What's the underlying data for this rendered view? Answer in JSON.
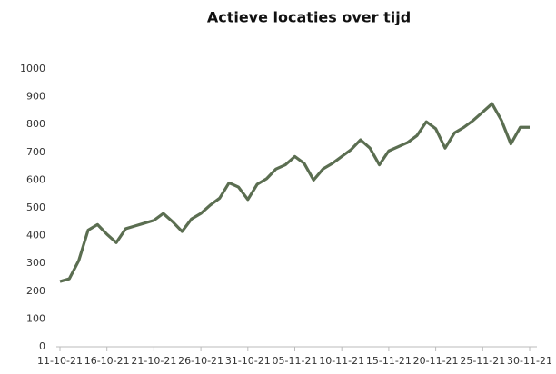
{
  "chart_data": {
    "type": "line",
    "title": "Actieve locaties over tijd",
    "categories": [
      "11-10-21",
      null,
      null,
      null,
      null,
      "16-10-21",
      null,
      null,
      null,
      null,
      "21-10-21",
      null,
      null,
      null,
      null,
      "26-10-21",
      null,
      null,
      null,
      null,
      "31-10-21",
      null,
      null,
      null,
      null,
      "05-11-21",
      null,
      null,
      null,
      null,
      "10-11-21",
      null,
      null,
      null,
      null,
      "15-11-21",
      null,
      null,
      null,
      null,
      "20-11-21",
      null,
      null,
      null,
      null,
      "25-11-21",
      null,
      null,
      null,
      null,
      "30-11-21"
    ],
    "series": [
      {
        "color": "#5b6e51",
        "values": [
          235,
          245,
          310,
          420,
          440,
          405,
          375,
          425,
          435,
          445,
          455,
          480,
          450,
          415,
          460,
          480,
          510,
          535,
          590,
          575,
          530,
          585,
          605,
          640,
          655,
          685,
          660,
          600,
          640,
          660,
          685,
          710,
          745,
          715,
          655,
          705,
          720,
          735,
          760,
          810,
          785,
          715,
          770,
          790,
          815,
          845,
          875,
          815,
          730,
          790,
          790
        ]
      }
    ],
    "ylim": [
      0,
      1000
    ],
    "yticks": [
      0,
      100,
      200,
      300,
      400,
      500,
      600,
      700,
      800,
      900,
      1000
    ],
    "grid": false
  }
}
